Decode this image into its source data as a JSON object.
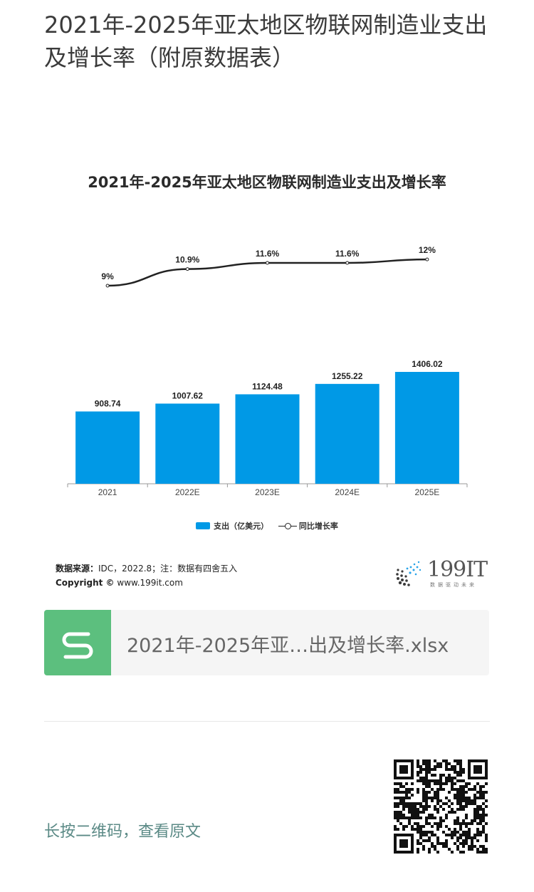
{
  "article": {
    "title": "2021年-2025年亚太地区物联网制造业支出及增长率（附原数据表）"
  },
  "chart_data": {
    "type": "bar",
    "title": "2021年-2025年亚太地区物联网制造业支出及增长率",
    "categories": [
      "2021",
      "2022E",
      "2023E",
      "2024E",
      "2025E"
    ],
    "series": [
      {
        "name": "支出（亿美元）",
        "type": "bar",
        "values": [
          908.74,
          1007.62,
          1124.48,
          1255.22,
          1406.02
        ],
        "labels": [
          "908.74",
          "1007.62",
          "1124.48",
          "1255.22",
          "1406.02"
        ]
      },
      {
        "name": "同比增长率",
        "type": "line",
        "values": [
          9,
          10.9,
          11.6,
          11.6,
          12
        ],
        "labels": [
          "9%",
          "10.9%",
          "11.6%",
          "11.6%",
          "12%"
        ]
      }
    ],
    "colors": {
      "bar": "#0099e6",
      "line": "#222222"
    },
    "legend_position": "bottom",
    "grid": false
  },
  "legend": {
    "bar_label": "支出（亿美元）",
    "line_label": "同比增长率"
  },
  "source": {
    "label": "数据来源：",
    "text": "IDC，2022.8；注：数据有四舍五入",
    "copyright_label": "Copyright ©",
    "copyright_site": "www.199it.com"
  },
  "logo": {
    "text": "199IT",
    "tagline": "数据驱动未来",
    "icon": "dotted-globe-icon"
  },
  "attachment": {
    "file_name": "2021年-2025年亚…出及增长率.xlsx",
    "icon": "spreadsheet-s-icon",
    "icon_color": "#5cbf7e"
  },
  "footer": {
    "qr_prompt": "长按二维码，查看原文",
    "qr_icon": "qr-code-icon"
  }
}
